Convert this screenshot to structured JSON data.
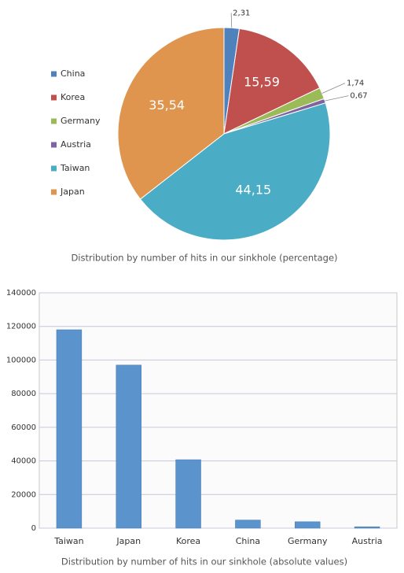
{
  "chart_data": [
    {
      "type": "pie",
      "caption": "Distribution by number of hits in our sinkhole (percentage)",
      "categories": [
        "China",
        "Korea",
        "Germany",
        "Austria",
        "Taiwan",
        "Japan"
      ],
      "values": [
        2.31,
        15.59,
        1.74,
        0.67,
        44.15,
        35.54
      ],
      "value_labels": [
        "2,31",
        "15,59",
        "1,74",
        "0,67",
        "44,15",
        "35,54"
      ],
      "colors": [
        "#4f81bd",
        "#c0504d",
        "#9bbb59",
        "#8064a2",
        "#4bacc6",
        "#e0954f"
      ],
      "legend": "left"
    },
    {
      "type": "bar",
      "caption": "Distribution by number of hits in our sinkhole (absolute values)",
      "categories": [
        "Taiwan",
        "Japan",
        "Korea",
        "China",
        "Germany",
        "Austria"
      ],
      "values": [
        118000,
        97000,
        40700,
        4800,
        3800,
        800
      ],
      "color": "#5b93cc",
      "ylim": [
        0,
        140000
      ],
      "yticks": [
        0,
        20000,
        40000,
        60000,
        80000,
        100000,
        120000,
        140000
      ],
      "grid": true
    }
  ]
}
